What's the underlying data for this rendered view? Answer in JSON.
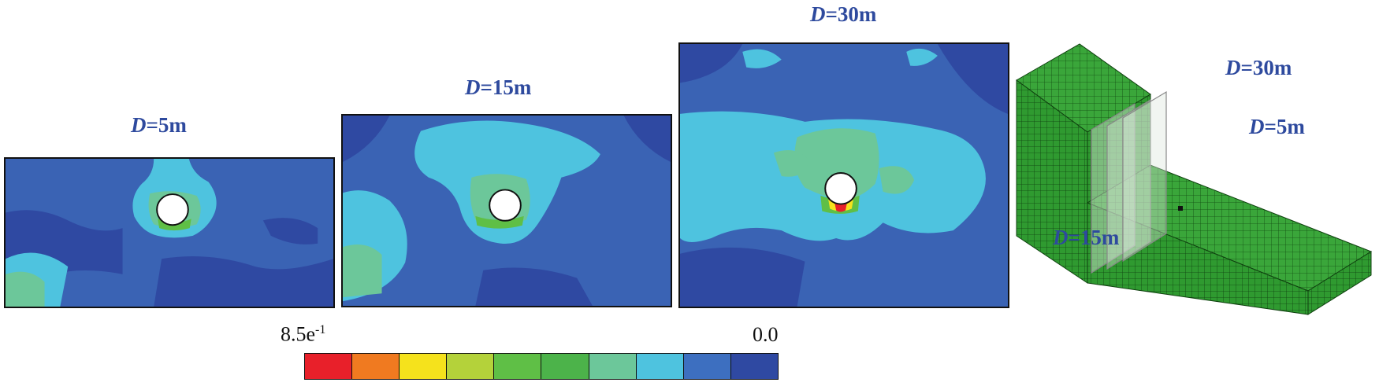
{
  "panels": [
    {
      "label_prefix": "D",
      "label_suffix": "=5m"
    },
    {
      "label_prefix": "D",
      "label_suffix": "=15m"
    },
    {
      "label_prefix": "D",
      "label_suffix": "=30m"
    }
  ],
  "colorbar": {
    "max_label": "8.5e",
    "max_exponent": "-1",
    "min_label": "0.0",
    "colors": [
      "#e8202a",
      "#f07a20",
      "#f5e21c",
      "#b4d23a",
      "#5fbf46",
      "#4cb34a",
      "#6cc79a",
      "#4ec3df",
      "#3d6fc0",
      "#2f49a2"
    ]
  },
  "model": {
    "labels": [
      {
        "prefix": "D",
        "suffix": "=30m"
      },
      {
        "prefix": "D",
        "suffix": "=5m"
      },
      {
        "prefix": "D",
        "suffix": "=15m"
      }
    ],
    "mesh_color": "#3aa63a"
  }
}
